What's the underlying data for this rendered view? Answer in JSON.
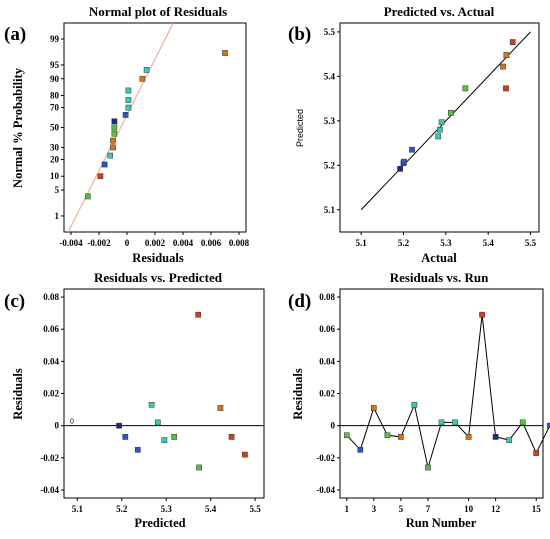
{
  "colors": {
    "red": "#c8401c",
    "orange": "#d4741c",
    "green": "#52c43a",
    "cyan": "#3cc8b0",
    "blue": "#2a54c8",
    "navy": "#1a2a8a",
    "fitline": "#f2a090"
  },
  "chart_data": [
    {
      "type": "scatter",
      "panel_label": "(a)",
      "title": "Normal plot of Residuals",
      "xlabel": "Residuals",
      "ylabel": "Normal % Probability",
      "xlim": [
        -0.0045,
        0.0085
      ],
      "xticks": [
        -0.004,
        -0.002,
        0,
        0.002,
        0.004,
        0.006,
        0.008
      ],
      "xtick_labels": [
        "-0.004",
        "-0.002",
        "0",
        "0.002",
        "0.004",
        "0.006",
        "0.008"
      ],
      "yticks": [
        1,
        5,
        10,
        20,
        30,
        50,
        70,
        80,
        90,
        95,
        99
      ],
      "ytick_labels": [
        "1",
        "5",
        "10",
        "20",
        "30",
        "50",
        "70",
        "80",
        "90",
        "95",
        "99"
      ],
      "fit_line": {
        "x": [
          -0.0042,
          0.0033
        ],
        "y": [
          0.0,
          99.99
        ]
      },
      "points": [
        {
          "x": -0.0028,
          "y": 3.5,
          "color": "green"
        },
        {
          "x": -0.0019,
          "y": 10,
          "color": "red"
        },
        {
          "x": -0.0016,
          "y": 16.5,
          "color": "blue"
        },
        {
          "x": -0.0012,
          "y": 23,
          "color": "cyan"
        },
        {
          "x": -0.001,
          "y": 30,
          "color": "orange"
        },
        {
          "x": -0.001,
          "y": 36.5,
          "color": "orange"
        },
        {
          "x": -0.0009,
          "y": 43.5,
          "color": "green"
        },
        {
          "x": -0.0009,
          "y": 50,
          "color": "green"
        },
        {
          "x": -0.0009,
          "y": 56.5,
          "color": "navy"
        },
        {
          "x": -0.0001,
          "y": 63,
          "color": "blue"
        },
        {
          "x": 0.0001,
          "y": 70,
          "color": "cyan"
        },
        {
          "x": 0.0001,
          "y": 76.5,
          "color": "cyan"
        },
        {
          "x": 0.0001,
          "y": 83.5,
          "color": "cyan"
        },
        {
          "x": 0.0011,
          "y": 90,
          "color": "orange"
        },
        {
          "x": 0.0014,
          "y": 93.5,
          "color": "cyan"
        },
        {
          "x": 0.007,
          "y": 97.5,
          "color": "orange"
        }
      ]
    },
    {
      "type": "scatter",
      "panel_label": "(b)",
      "title": "Predicted vs. Actual",
      "xlabel": "Actual",
      "ylabel": "Predicted",
      "xlim": [
        5.05,
        5.52
      ],
      "ylim": [
        5.05,
        5.52
      ],
      "xticks": [
        5.1,
        5.2,
        5.3,
        5.4,
        5.5
      ],
      "xtick_labels": [
        "5.1",
        "5.2",
        "5.3",
        "5.4",
        "5.5"
      ],
      "yticks": [
        5.1,
        5.2,
        5.3,
        5.4,
        5.5
      ],
      "ytick_labels": [
        "5.1",
        "5.2",
        "5.3",
        "5.4",
        "5.5"
      ],
      "fit_line": {
        "x": [
          5.1,
          5.5
        ],
        "y": [
          5.1,
          5.5
        ]
      },
      "points": [
        {
          "x": 5.192,
          "y": 5.192,
          "color": "navy"
        },
        {
          "x": 5.2,
          "y": 5.205,
          "color": "blue"
        },
        {
          "x": 5.201,
          "y": 5.208,
          "color": "blue"
        },
        {
          "x": 5.22,
          "y": 5.235,
          "color": "blue"
        },
        {
          "x": 5.282,
          "y": 5.265,
          "color": "cyan"
        },
        {
          "x": 5.286,
          "y": 5.28,
          "color": "cyan"
        },
        {
          "x": 5.29,
          "y": 5.297,
          "color": "cyan"
        },
        {
          "x": 5.312,
          "y": 5.318,
          "color": "green"
        },
        {
          "x": 5.346,
          "y": 5.373,
          "color": "green"
        },
        {
          "x": 5.435,
          "y": 5.422,
          "color": "orange"
        },
        {
          "x": 5.442,
          "y": 5.373,
          "color": "red"
        },
        {
          "x": 5.443,
          "y": 5.448,
          "color": "orange"
        },
        {
          "x": 5.458,
          "y": 5.477,
          "color": "red"
        }
      ]
    },
    {
      "type": "scatter",
      "panel_label": "(c)",
      "title": "Residuals vs. Predicted",
      "xlabel": "Predicted",
      "ylabel": "Residuals",
      "xlim": [
        5.07,
        5.52
      ],
      "ylim": [
        -0.045,
        0.085
      ],
      "xticks": [
        5.1,
        5.2,
        5.3,
        5.4,
        5.5
      ],
      "xtick_labels": [
        "5.1",
        "5.2",
        "5.3",
        "5.4",
        "5.5"
      ],
      "yticks": [
        -0.04,
        -0.02,
        0,
        0.02,
        0.04,
        0.06,
        0.08
      ],
      "ytick_labels": [
        "-0.04",
        "-0.02",
        "0",
        "0.02",
        "0.04",
        "0.06",
        "0.08"
      ],
      "zero_line_label": "0",
      "points": [
        {
          "x": 5.194,
          "y": 0.0,
          "color": "navy"
        },
        {
          "x": 5.208,
          "y": -0.007,
          "color": "blue"
        },
        {
          "x": 5.236,
          "y": -0.015,
          "color": "blue"
        },
        {
          "x": 5.267,
          "y": 0.013,
          "color": "cyan"
        },
        {
          "x": 5.281,
          "y": 0.002,
          "color": "cyan"
        },
        {
          "x": 5.296,
          "y": -0.009,
          "color": "cyan"
        },
        {
          "x": 5.318,
          "y": -0.007,
          "color": "green"
        },
        {
          "x": 5.372,
          "y": 0.069,
          "color": "red"
        },
        {
          "x": 5.374,
          "y": -0.026,
          "color": "green"
        },
        {
          "x": 5.422,
          "y": 0.011,
          "color": "orange"
        },
        {
          "x": 5.447,
          "y": -0.007,
          "color": "red"
        },
        {
          "x": 5.477,
          "y": -0.018,
          "color": "red"
        }
      ]
    },
    {
      "type": "line",
      "panel_label": "(d)",
      "title": "Residuals vs. Run",
      "xlabel": "Run Number",
      "ylabel": "Residuals",
      "xlim": [
        0.5,
        15.5
      ],
      "ylim": [
        -0.045,
        0.085
      ],
      "xticks": [
        1,
        3,
        5,
        7,
        10,
        12,
        15
      ],
      "xtick_labels": [
        "1",
        "3",
        "5",
        "7",
        "10",
        "12",
        "15"
      ],
      "yticks": [
        -0.04,
        -0.02,
        0,
        0.02,
        0.04,
        0.06,
        0.08
      ],
      "ytick_labels": [
        "-0.04",
        "-0.02",
        "0",
        "0.02",
        "0.04",
        "0.06",
        "0.08"
      ],
      "points": [
        {
          "x": 1,
          "y": -0.006,
          "color": "green"
        },
        {
          "x": 2,
          "y": -0.015,
          "color": "blue"
        },
        {
          "x": 3,
          "y": 0.011,
          "color": "orange"
        },
        {
          "x": 4,
          "y": -0.006,
          "color": "green"
        },
        {
          "x": 5,
          "y": -0.007,
          "color": "orange"
        },
        {
          "x": 6,
          "y": 0.013,
          "color": "cyan"
        },
        {
          "x": 7,
          "y": -0.026,
          "color": "green"
        },
        {
          "x": 8,
          "y": 0.002,
          "color": "cyan"
        },
        {
          "x": 9,
          "y": 0.002,
          "color": "cyan"
        },
        {
          "x": 10,
          "y": -0.007,
          "color": "orange"
        },
        {
          "x": 11,
          "y": 0.069,
          "color": "red"
        },
        {
          "x": 12,
          "y": -0.007,
          "color": "navy"
        },
        {
          "x": 13,
          "y": -0.009,
          "color": "cyan"
        },
        {
          "x": 14,
          "y": 0.002,
          "color": "green"
        },
        {
          "x": 15,
          "y": -0.017,
          "color": "red"
        },
        {
          "x": 16,
          "y": 0.0,
          "color": "blue"
        }
      ]
    }
  ]
}
